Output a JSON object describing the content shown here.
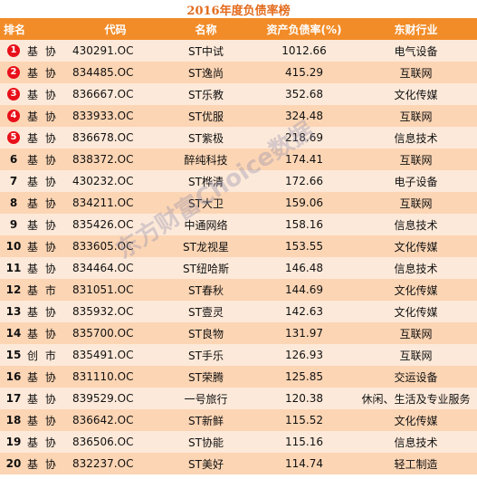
{
  "chart_data": {
    "type": "table",
    "title": "2016年度负债率榜",
    "columns": [
      "排名",
      "",
      "代码",
      "名称",
      "资产负债率(%)",
      "东财行业"
    ],
    "rows": [
      {
        "rank": "1",
        "board": "基 协",
        "code": "430291.OC",
        "name": "ST中试",
        "ratio": "1012.66",
        "industry": "电气设备"
      },
      {
        "rank": "2",
        "board": "基 协",
        "code": "834485.OC",
        "name": "ST逸尚",
        "ratio": "415.29",
        "industry": "互联网"
      },
      {
        "rank": "3",
        "board": "基 协",
        "code": "836667.OC",
        "name": "ST乐教",
        "ratio": "352.68",
        "industry": "文化传媒"
      },
      {
        "rank": "4",
        "board": "基 协",
        "code": "833933.OC",
        "name": "ST优服",
        "ratio": "324.48",
        "industry": "互联网"
      },
      {
        "rank": "5",
        "board": "基 协",
        "code": "836678.OC",
        "name": "ST紫极",
        "ratio": "218.69",
        "industry": "信息技术"
      },
      {
        "rank": "6",
        "board": "基 协",
        "code": "838372.OC",
        "name": "醉纯科技",
        "ratio": "174.41",
        "industry": "互联网"
      },
      {
        "rank": "7",
        "board": "基 协",
        "code": "430232.OC",
        "name": "ST桦清",
        "ratio": "172.66",
        "industry": "电子设备"
      },
      {
        "rank": "8",
        "board": "基 协",
        "code": "834211.OC",
        "name": "ST大卫",
        "ratio": "159.06",
        "industry": "互联网"
      },
      {
        "rank": "9",
        "board": "基 协",
        "code": "835426.OC",
        "name": "中通网络",
        "ratio": "158.16",
        "industry": "信息技术"
      },
      {
        "rank": "10",
        "board": "基 协",
        "code": "833605.OC",
        "name": "ST龙视星",
        "ratio": "153.55",
        "industry": "文化传媒"
      },
      {
        "rank": "11",
        "board": "基 协",
        "code": "834464.OC",
        "name": "ST纽哈斯",
        "ratio": "146.48",
        "industry": "信息技术"
      },
      {
        "rank": "12",
        "board": "基 市",
        "code": "831051.OC",
        "name": "ST春秋",
        "ratio": "144.69",
        "industry": "文化传媒"
      },
      {
        "rank": "13",
        "board": "基 协",
        "code": "835932.OC",
        "name": "ST壹灵",
        "ratio": "142.63",
        "industry": "文化传媒"
      },
      {
        "rank": "14",
        "board": "基 协",
        "code": "835700.OC",
        "name": "ST良物",
        "ratio": "131.97",
        "industry": "互联网"
      },
      {
        "rank": "15",
        "board": "创 市",
        "code": "835491.OC",
        "name": "ST手乐",
        "ratio": "126.93",
        "industry": "互联网"
      },
      {
        "rank": "16",
        "board": "基 协",
        "code": "831110.OC",
        "name": "ST荣腾",
        "ratio": "125.85",
        "industry": "交运设备"
      },
      {
        "rank": "17",
        "board": "基 协",
        "code": "839529.OC",
        "name": "一号旅行",
        "ratio": "120.38",
        "industry": "休闲、生活及专业服务"
      },
      {
        "rank": "18",
        "board": "基 协",
        "code": "836642.OC",
        "name": "ST新鲜",
        "ratio": "115.52",
        "industry": "文化传媒"
      },
      {
        "rank": "19",
        "board": "基 协",
        "code": "836506.OC",
        "name": "ST协能",
        "ratio": "115.16",
        "industry": "信息技术"
      },
      {
        "rank": "20",
        "board": "基 协",
        "code": "832237.OC",
        "name": "ST美好",
        "ratio": "114.74",
        "industry": "轻工制造"
      }
    ]
  },
  "watermark": "东方财富Choice数据",
  "colors": {
    "header_bg": "#f28c28",
    "row_light": "#fde9d9",
    "row_dark": "#fcd5b4",
    "medal": "#e8101a",
    "title": "#e36c1e"
  }
}
